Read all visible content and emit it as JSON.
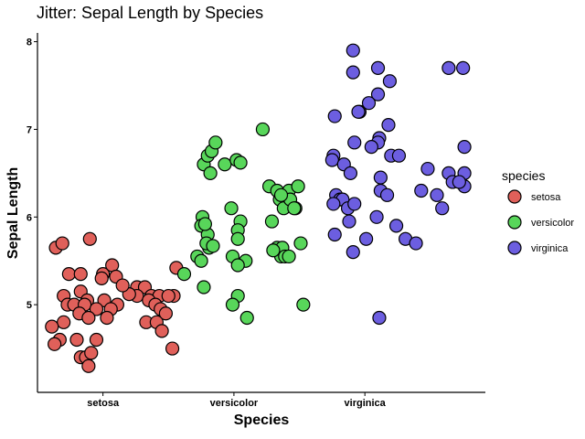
{
  "chart_data": {
    "type": "scatter",
    "title": "Jitter: Sepal Length by Species",
    "xlabel": "Species",
    "ylabel": "Sepal Length",
    "categories": [
      "setosa",
      "versicolor",
      "virginica"
    ],
    "ylim": [
      4.0,
      8.1
    ],
    "yticks": [
      5,
      6,
      7,
      8
    ],
    "grid": false,
    "legend": {
      "title": "species",
      "position": "right",
      "entries": [
        {
          "name": "setosa",
          "color": "#e0605a"
        },
        {
          "name": "versicolor",
          "color": "#58d65a"
        },
        {
          "name": "virginica",
          "color": "#6c5ee0"
        }
      ]
    },
    "series": [
      {
        "name": "setosa",
        "color": "#e0605a",
        "points": [
          {
            "x": -0.36,
            "y": 5.65
          },
          {
            "x": -0.31,
            "y": 5.7
          },
          {
            "x": -0.1,
            "y": 5.75
          },
          {
            "x": -0.26,
            "y": 5.35
          },
          {
            "x": -0.17,
            "y": 5.35
          },
          {
            "x": 0.0,
            "y": 5.35
          },
          {
            "x": 0.07,
            "y": 5.45
          },
          {
            "x": -0.01,
            "y": 5.3
          },
          {
            "x": 0.26,
            "y": 5.2
          },
          {
            "x": 0.32,
            "y": 5.2
          },
          {
            "x": -0.17,
            "y": 5.15
          },
          {
            "x": -0.3,
            "y": 5.1
          },
          {
            "x": -0.12,
            "y": 5.05
          },
          {
            "x": -0.27,
            "y": 5.0
          },
          {
            "x": -0.22,
            "y": 5.0
          },
          {
            "x": -0.14,
            "y": 5.0
          },
          {
            "x": 0.01,
            "y": 5.05
          },
          {
            "x": 0.11,
            "y": 5.0
          },
          {
            "x": 0.26,
            "y": 5.1
          },
          {
            "x": 0.37,
            "y": 5.1
          },
          {
            "x": 0.43,
            "y": 5.1
          },
          {
            "x": 0.54,
            "y": 5.1
          },
          {
            "x": 0.35,
            "y": 5.05
          },
          {
            "x": 0.4,
            "y": 5.0
          },
          {
            "x": 0.44,
            "y": 4.95
          },
          {
            "x": -0.18,
            "y": 4.9
          },
          {
            "x": -0.05,
            "y": 4.95
          },
          {
            "x": 0.06,
            "y": 4.95
          },
          {
            "x": 0.48,
            "y": 4.9
          },
          {
            "x": -0.11,
            "y": 4.85
          },
          {
            "x": 0.03,
            "y": 4.85
          },
          {
            "x": -0.3,
            "y": 4.8
          },
          {
            "x": 0.33,
            "y": 4.8
          },
          {
            "x": 0.41,
            "y": 4.8
          },
          {
            "x": -0.39,
            "y": 4.75
          },
          {
            "x": -0.33,
            "y": 4.6
          },
          {
            "x": -0.2,
            "y": 4.6
          },
          {
            "x": -0.05,
            "y": 4.6
          },
          {
            "x": 0.45,
            "y": 4.7
          },
          {
            "x": -0.37,
            "y": 4.55
          },
          {
            "x": -0.17,
            "y": 4.4
          },
          {
            "x": -0.13,
            "y": 4.4
          },
          {
            "x": -0.11,
            "y": 4.3
          },
          {
            "x": 0.53,
            "y": 4.5
          },
          {
            "x": -0.09,
            "y": 4.45
          },
          {
            "x": 0.5,
            "y": 5.1
          },
          {
            "x": 0.56,
            "y": 5.42
          },
          {
            "x": 0.2,
            "y": 5.12
          },
          {
            "x": 0.1,
            "y": 5.32
          },
          {
            "x": 0.15,
            "y": 5.22
          }
        ]
      },
      {
        "name": "versicolor",
        "color": "#58d65a",
        "points": [
          {
            "x": 0.62,
            "y": 5.35
          },
          {
            "x": 0.77,
            "y": 6.6
          },
          {
            "x": 0.8,
            "y": 6.7
          },
          {
            "x": 0.83,
            "y": 6.75
          },
          {
            "x": 0.86,
            "y": 6.85
          },
          {
            "x": 0.93,
            "y": 6.6
          },
          {
            "x": 1.02,
            "y": 6.65
          },
          {
            "x": 1.05,
            "y": 6.62
          },
          {
            "x": 1.22,
            "y": 7.0
          },
          {
            "x": 0.82,
            "y": 6.5
          },
          {
            "x": 0.72,
            "y": 5.55
          },
          {
            "x": 0.76,
            "y": 6.0
          },
          {
            "x": 0.75,
            "y": 5.9
          },
          {
            "x": 0.8,
            "y": 5.8
          },
          {
            "x": 0.75,
            "y": 5.5
          },
          {
            "x": 0.81,
            "y": 5.65
          },
          {
            "x": 0.79,
            "y": 5.7
          },
          {
            "x": 0.77,
            "y": 5.2
          },
          {
            "x": 0.98,
            "y": 6.1
          },
          {
            "x": 1.05,
            "y": 5.95
          },
          {
            "x": 1.03,
            "y": 5.85
          },
          {
            "x": 1.03,
            "y": 5.75
          },
          {
            "x": 0.99,
            "y": 5.55
          },
          {
            "x": 1.09,
            "y": 5.5
          },
          {
            "x": 1.03,
            "y": 5.45
          },
          {
            "x": 1.03,
            "y": 5.1
          },
          {
            "x": 0.99,
            "y": 5.0
          },
          {
            "x": 1.1,
            "y": 4.85
          },
          {
            "x": 1.27,
            "y": 6.35
          },
          {
            "x": 1.33,
            "y": 6.3
          },
          {
            "x": 1.35,
            "y": 6.2
          },
          {
            "x": 1.38,
            "y": 6.1
          },
          {
            "x": 1.42,
            "y": 6.3
          },
          {
            "x": 1.43,
            "y": 6.2
          },
          {
            "x": 1.47,
            "y": 6.1
          },
          {
            "x": 1.49,
            "y": 6.35
          },
          {
            "x": 1.29,
            "y": 5.95
          },
          {
            "x": 1.33,
            "y": 5.65
          },
          {
            "x": 1.35,
            "y": 5.6
          },
          {
            "x": 1.36,
            "y": 5.55
          },
          {
            "x": 1.37,
            "y": 5.65
          },
          {
            "x": 1.39,
            "y": 5.55
          },
          {
            "x": 1.42,
            "y": 5.55
          },
          {
            "x": 1.51,
            "y": 5.7
          },
          {
            "x": 1.53,
            "y": 5.0
          },
          {
            "x": 1.36,
            "y": 6.25
          },
          {
            "x": 0.84,
            "y": 5.67
          },
          {
            "x": 0.78,
            "y": 5.92
          },
          {
            "x": 1.46,
            "y": 6.1
          },
          {
            "x": 1.3,
            "y": 5.62
          }
        ]
      },
      {
        "name": "virginica",
        "color": "#6c5ee0",
        "points": [
          {
            "x": 1.91,
            "y": 7.9
          },
          {
            "x": 1.91,
            "y": 7.65
          },
          {
            "x": 2.1,
            "y": 7.7
          },
          {
            "x": 2.19,
            "y": 7.55
          },
          {
            "x": 2.64,
            "y": 7.7
          },
          {
            "x": 2.75,
            "y": 7.7
          },
          {
            "x": 2.1,
            "y": 7.4
          },
          {
            "x": 2.03,
            "y": 7.3
          },
          {
            "x": 1.96,
            "y": 7.2
          },
          {
            "x": 1.95,
            "y": 7.2
          },
          {
            "x": 1.77,
            "y": 7.15
          },
          {
            "x": 2.18,
            "y": 7.05
          },
          {
            "x": 2.11,
            "y": 6.9
          },
          {
            "x": 2.1,
            "y": 6.85
          },
          {
            "x": 2.05,
            "y": 6.8
          },
          {
            "x": 1.92,
            "y": 6.85
          },
          {
            "x": 2.2,
            "y": 6.7
          },
          {
            "x": 2.26,
            "y": 6.7
          },
          {
            "x": 2.76,
            "y": 6.8
          },
          {
            "x": 1.76,
            "y": 6.7
          },
          {
            "x": 1.75,
            "y": 6.65
          },
          {
            "x": 1.84,
            "y": 6.6
          },
          {
            "x": 2.64,
            "y": 6.5
          },
          {
            "x": 2.67,
            "y": 6.4
          },
          {
            "x": 2.76,
            "y": 6.5
          },
          {
            "x": 2.76,
            "y": 6.35
          },
          {
            "x": 2.72,
            "y": 6.4
          },
          {
            "x": 1.89,
            "y": 6.5
          },
          {
            "x": 2.12,
            "y": 6.45
          },
          {
            "x": 2.12,
            "y": 6.3
          },
          {
            "x": 2.17,
            "y": 6.25
          },
          {
            "x": 1.78,
            "y": 6.25
          },
          {
            "x": 1.81,
            "y": 6.2
          },
          {
            "x": 1.83,
            "y": 6.2
          },
          {
            "x": 1.76,
            "y": 6.15
          },
          {
            "x": 1.87,
            "y": 6.1
          },
          {
            "x": 1.92,
            "y": 6.15
          },
          {
            "x": 2.43,
            "y": 6.3
          },
          {
            "x": 2.55,
            "y": 6.25
          },
          {
            "x": 2.59,
            "y": 6.1
          },
          {
            "x": 1.88,
            "y": 5.95
          },
          {
            "x": 2.09,
            "y": 6.0
          },
          {
            "x": 2.24,
            "y": 5.9
          },
          {
            "x": 1.77,
            "y": 5.8
          },
          {
            "x": 2.01,
            "y": 5.75
          },
          {
            "x": 2.31,
            "y": 5.75
          },
          {
            "x": 2.39,
            "y": 5.7
          },
          {
            "x": 1.91,
            "y": 5.6
          },
          {
            "x": 2.11,
            "y": 4.85
          },
          {
            "x": 2.48,
            "y": 6.55
          }
        ]
      }
    ]
  }
}
